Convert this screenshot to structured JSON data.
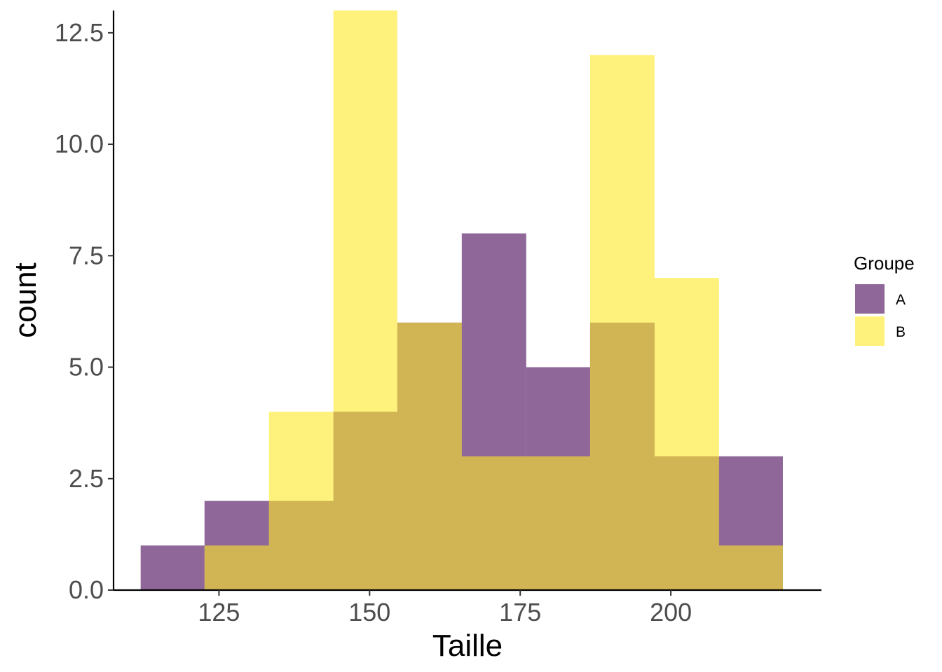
{
  "chart_data": {
    "type": "bar",
    "subtype": "overlapping-histogram",
    "title": "",
    "xlabel": "Taille",
    "ylabel": "count",
    "xlim": [
      107.5,
      225
    ],
    "ylim": [
      0,
      13
    ],
    "x_ticks": [
      125,
      150,
      175,
      200
    ],
    "x_tick_labels": [
      "125",
      "150",
      "175",
      "200"
    ],
    "y_ticks": [
      0,
      2.5,
      5,
      7.5,
      10,
      12.5
    ],
    "y_tick_labels": [
      "0.0",
      "2.5",
      "5.0",
      "7.5",
      "10.0",
      "12.5"
    ],
    "grid": false,
    "legend": {
      "title": "Groupe",
      "position": "right"
    },
    "bins": [
      [
        112,
        122.6
      ],
      [
        122.6,
        133.3
      ],
      [
        133.3,
        144
      ],
      [
        144,
        154.6
      ],
      [
        154.6,
        165.3
      ],
      [
        165.3,
        176
      ],
      [
        176,
        186.6
      ],
      [
        186.6,
        197.3
      ],
      [
        197.3,
        208
      ],
      [
        208,
        218.6
      ]
    ],
    "series": [
      {
        "name": "A",
        "color": "#440154",
        "opacity": 0.6,
        "values": [
          1,
          2,
          2,
          4,
          6,
          8,
          5,
          6,
          3,
          3
        ]
      },
      {
        "name": "B",
        "color": "#FDE725",
        "opacity": 0.6,
        "values": [
          0,
          1,
          4,
          13,
          6,
          3,
          3,
          12,
          7,
          1
        ]
      }
    ]
  }
}
